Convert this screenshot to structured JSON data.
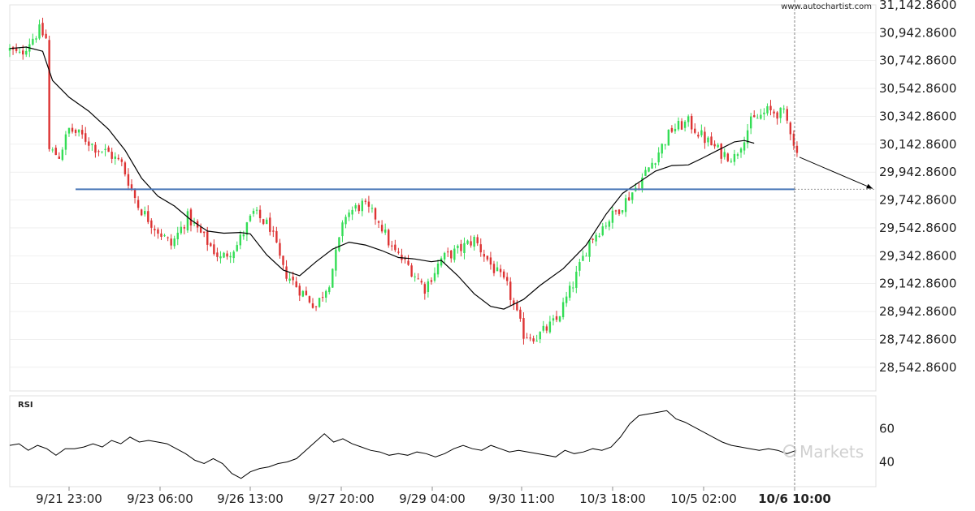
{
  "watermark_url": "www.autochartist.com",
  "brand_logo_text": "Markets",
  "rsi_label": "RSI",
  "colors": {
    "up": "#33dd55",
    "down": "#dd3333",
    "support": "#4a78b8",
    "ma": "#000000",
    "grid": "#e6e6e6"
  },
  "chart_data": [
    {
      "type": "candlestick",
      "title": "",
      "ylim": [
        28442.86,
        31142.86
      ],
      "yticks": [
        "31,142.8600",
        "30,942.8600",
        "30,742.8600",
        "30,542.8600",
        "30,342.8600",
        "30,142.8600",
        "29,942.8600",
        "29,742.8600",
        "29,542.8600",
        "29,342.8600",
        "29,142.8600",
        "28,942.8600",
        "28,742.8600",
        "28,542.8600"
      ],
      "ytick_values": [
        31142.86,
        30942.86,
        30742.86,
        30542.86,
        30342.86,
        30142.86,
        29942.86,
        29742.86,
        29542.86,
        29342.86,
        29142.86,
        28942.86,
        28742.86,
        28542.86
      ],
      "xticks": [
        "9/21 23:00",
        "9/23 06:00",
        "9/26 13:00",
        "9/27 20:00",
        "9/29 04:00",
        "9/30 11:00",
        "10/3 18:00",
        "10/5 02:00",
        "10/6 10:00"
      ],
      "xticks_bold_last": true,
      "support_level": 29820,
      "forecast": {
        "from": 30050,
        "to": 29825
      },
      "grid": true,
      "close_path": [
        [
          0,
          30820
        ],
        [
          6,
          30780
        ],
        [
          12,
          30880
        ],
        [
          18,
          30960
        ],
        [
          22,
          30900
        ],
        [
          24,
          30100
        ],
        [
          30,
          30060
        ],
        [
          36,
          30250
        ],
        [
          44,
          30200
        ],
        [
          52,
          30120
        ],
        [
          60,
          30080
        ],
        [
          68,
          30000
        ],
        [
          78,
          29700
        ],
        [
          88,
          29550
        ],
        [
          98,
          29420
        ],
        [
          108,
          29620
        ],
        [
          118,
          29470
        ],
        [
          128,
          29320
        ],
        [
          138,
          29420
        ],
        [
          148,
          29650
        ],
        [
          158,
          29550
        ],
        [
          166,
          29240
        ],
        [
          176,
          29100
        ],
        [
          186,
          28980
        ],
        [
          194,
          29160
        ],
        [
          204,
          29640
        ],
        [
          214,
          29710
        ],
        [
          224,
          29600
        ],
        [
          232,
          29390
        ],
        [
          242,
          29270
        ],
        [
          252,
          29110
        ],
        [
          262,
          29320
        ],
        [
          272,
          29380
        ],
        [
          282,
          29460
        ],
        [
          292,
          29280
        ],
        [
          302,
          29120
        ],
        [
          312,
          28780
        ],
        [
          320,
          28760
        ],
        [
          332,
          28880
        ],
        [
          342,
          29140
        ],
        [
          352,
          29450
        ],
        [
          362,
          29580
        ],
        [
          372,
          29710
        ],
        [
          382,
          29860
        ],
        [
          392,
          30050
        ],
        [
          402,
          30250
        ],
        [
          412,
          30300
        ],
        [
          422,
          30180
        ],
        [
          432,
          30080
        ],
        [
          440,
          30050
        ],
        [
          450,
          30300
        ],
        [
          460,
          30380
        ],
        [
          470,
          30360
        ],
        [
          474,
          30250
        ],
        [
          478,
          30070
        ]
      ],
      "ma_path": [
        [
          0,
          30830
        ],
        [
          10,
          30840
        ],
        [
          20,
          30810
        ],
        [
          26,
          30600
        ],
        [
          36,
          30480
        ],
        [
          48,
          30380
        ],
        [
          60,
          30250
        ],
        [
          70,
          30100
        ],
        [
          80,
          29900
        ],
        [
          90,
          29770
        ],
        [
          100,
          29700
        ],
        [
          110,
          29600
        ],
        [
          120,
          29520
        ],
        [
          130,
          29505
        ],
        [
          140,
          29510
        ],
        [
          146,
          29500
        ],
        [
          156,
          29350
        ],
        [
          166,
          29240
        ],
        [
          176,
          29200
        ],
        [
          186,
          29300
        ],
        [
          196,
          29390
        ],
        [
          206,
          29440
        ],
        [
          216,
          29420
        ],
        [
          226,
          29380
        ],
        [
          236,
          29330
        ],
        [
          246,
          29320
        ],
        [
          256,
          29300
        ],
        [
          262,
          29310
        ],
        [
          272,
          29200
        ],
        [
          282,
          29070
        ],
        [
          292,
          28980
        ],
        [
          300,
          28960
        ],
        [
          312,
          29030
        ],
        [
          322,
          29130
        ],
        [
          336,
          29250
        ],
        [
          350,
          29420
        ],
        [
          362,
          29640
        ],
        [
          372,
          29790
        ],
        [
          382,
          29870
        ],
        [
          392,
          29950
        ],
        [
          402,
          29990
        ],
        [
          412,
          29995
        ],
        [
          420,
          30040
        ],
        [
          430,
          30100
        ],
        [
          440,
          30160
        ],
        [
          446,
          30170
        ],
        [
          452,
          30150
        ]
      ]
    },
    {
      "type": "line",
      "title": "RSI",
      "ylim": [
        25,
        80
      ],
      "yticks": [
        "60",
        "40"
      ],
      "ytick_values": [
        60,
        40
      ],
      "path": [
        [
          0,
          50
        ],
        [
          5,
          51
        ],
        [
          10,
          47
        ],
        [
          15,
          50
        ],
        [
          20,
          48
        ],
        [
          25,
          44
        ],
        [
          30,
          48
        ],
        [
          35,
          48
        ],
        [
          40,
          49
        ],
        [
          45,
          51
        ],
        [
          50,
          49
        ],
        [
          55,
          53
        ],
        [
          60,
          51
        ],
        [
          65,
          55
        ],
        [
          70,
          52
        ],
        [
          75,
          53
        ],
        [
          80,
          52
        ],
        [
          85,
          51
        ],
        [
          90,
          48
        ],
        [
          95,
          45
        ],
        [
          100,
          41
        ],
        [
          105,
          39
        ],
        [
          110,
          42
        ],
        [
          115,
          39
        ],
        [
          120,
          33
        ],
        [
          125,
          30
        ],
        [
          130,
          34
        ],
        [
          135,
          36
        ],
        [
          140,
          37
        ],
        [
          145,
          39
        ],
        [
          150,
          40
        ],
        [
          155,
          42
        ],
        [
          160,
          47
        ],
        [
          165,
          52
        ],
        [
          170,
          57
        ],
        [
          175,
          52
        ],
        [
          180,
          54
        ],
        [
          185,
          51
        ],
        [
          190,
          49
        ],
        [
          195,
          47
        ],
        [
          200,
          46
        ],
        [
          205,
          44
        ],
        [
          210,
          45
        ],
        [
          215,
          44
        ],
        [
          220,
          46
        ],
        [
          225,
          45
        ],
        [
          230,
          43
        ],
        [
          235,
          45
        ],
        [
          240,
          48
        ],
        [
          245,
          50
        ],
        [
          250,
          48
        ],
        [
          255,
          47
        ],
        [
          260,
          50
        ],
        [
          265,
          48
        ],
        [
          270,
          46
        ],
        [
          275,
          47
        ],
        [
          280,
          46
        ],
        [
          285,
          45
        ],
        [
          290,
          44
        ],
        [
          295,
          43
        ],
        [
          300,
          47
        ],
        [
          305,
          45
        ],
        [
          310,
          46
        ],
        [
          315,
          48
        ],
        [
          320,
          47
        ],
        [
          325,
          49
        ],
        [
          330,
          55
        ],
        [
          335,
          63
        ],
        [
          340,
          68
        ],
        [
          345,
          69
        ],
        [
          350,
          70
        ],
        [
          355,
          71
        ],
        [
          360,
          66
        ],
        [
          365,
          64
        ],
        [
          370,
          61
        ],
        [
          375,
          58
        ],
        [
          380,
          55
        ],
        [
          385,
          52
        ],
        [
          390,
          50
        ],
        [
          395,
          49
        ],
        [
          400,
          48
        ],
        [
          405,
          47
        ],
        [
          410,
          48
        ],
        [
          415,
          47
        ],
        [
          420,
          45
        ],
        [
          425,
          47
        ]
      ]
    }
  ]
}
